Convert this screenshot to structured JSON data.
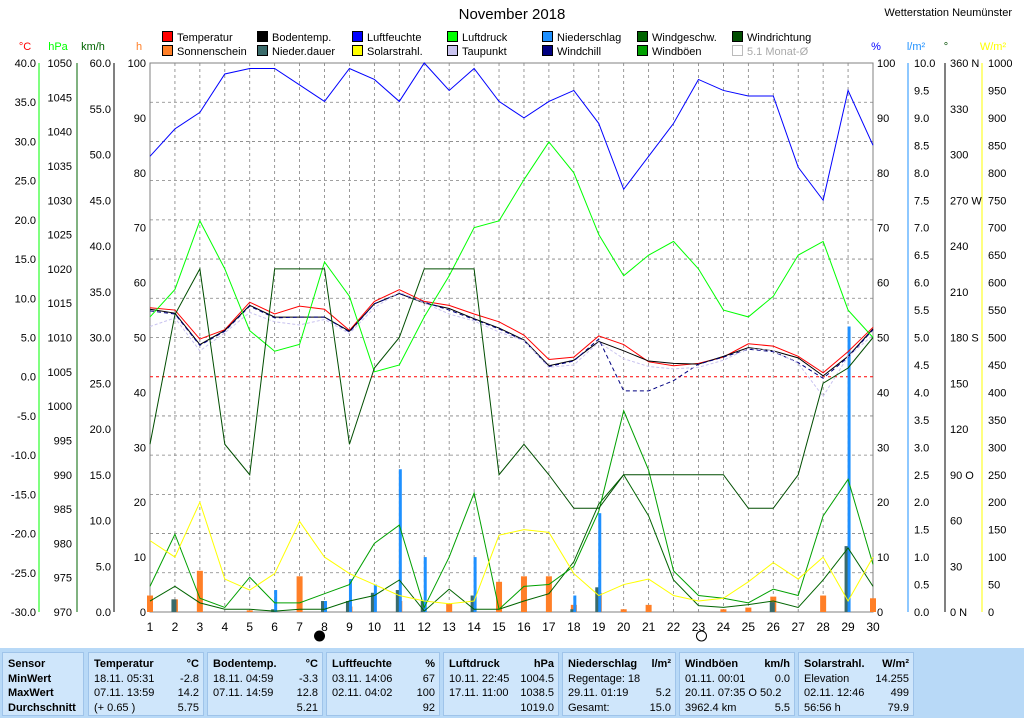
{
  "title": "November 2018",
  "station": "Wetterstation Neumünster",
  "legend": [
    {
      "label": "Temperatur",
      "color": "#ff0000"
    },
    {
      "label": "Sonnenschein",
      "color": "#ff7f27"
    },
    {
      "label": "Bodentemp.",
      "color": "#000000"
    },
    {
      "label": "Nieder.dauer",
      "color": "#3a6b6b"
    },
    {
      "label": "Luftfeuchte",
      "color": "#0000ff"
    },
    {
      "label": "Solarstrahl.",
      "color": "#ffff00"
    },
    {
      "label": "Luftdruck",
      "color": "#00ff00"
    },
    {
      "label": "Taupunkt",
      "color": "#c9c3ef"
    },
    {
      "label": "Niederschlag",
      "color": "#1e90ff"
    },
    {
      "label": "Windchill",
      "color": "#000080"
    },
    {
      "label": "Windgeschw.",
      "color": "#006400"
    },
    {
      "label": "Windböen",
      "color": "#00a000"
    },
    {
      "label": "Windrichtung",
      "color": "#004d00"
    },
    {
      "label": "5.1 Monat-Ø",
      "color": "#ffffff"
    }
  ],
  "axis_units": {
    "temp": "°C",
    "press": "hPa",
    "wind": "km/h",
    "sun": "h",
    "hum": "%",
    "rain": "l/m²",
    "dir": "°",
    "solar": "W/m²"
  },
  "colors": {
    "temp": "#ff0000",
    "press": "#00ff00",
    "wind": "#006400",
    "sun": "#ff7f27",
    "hum": "#0000ff",
    "rain": "#1e90ff",
    "dir": "#004d00",
    "solar": "#ffff00"
  },
  "chart_data": {
    "type": "line",
    "x": [
      1,
      2,
      3,
      4,
      5,
      6,
      7,
      8,
      9,
      10,
      11,
      12,
      13,
      14,
      15,
      16,
      17,
      18,
      19,
      20,
      21,
      22,
      23,
      24,
      25,
      26,
      27,
      28,
      29,
      30
    ],
    "axes": {
      "temp": {
        "min": -30,
        "max": 40,
        "ticks": [
          "40.0",
          "35.0",
          "30.0",
          "25.0",
          "20.0",
          "15.0",
          "10.0",
          "5.0",
          "0.0",
          "-5.0",
          "-10.0",
          "-15.0",
          "-20.0",
          "-25.0",
          "-30.0"
        ]
      },
      "press": {
        "min": 970,
        "max": 1050,
        "ticks": [
          "1050",
          "1045",
          "1040",
          "1035",
          "1030",
          "1025",
          "1020",
          "1015",
          "1010",
          "1005",
          "1000",
          "995",
          "990",
          "985",
          "980",
          "975",
          "970"
        ]
      },
      "wind": {
        "min": 0,
        "max": 60,
        "ticks": [
          "60.0",
          "55.0",
          "50.0",
          "45.0",
          "40.0",
          "35.0",
          "30.0",
          "25.0",
          "20.0",
          "15.0",
          "10.0",
          "5.0",
          "0.0"
        ]
      },
      "sun": {
        "min": 0,
        "max": 100,
        "ticks": [
          "100",
          "90",
          "80",
          "70",
          "60",
          "50",
          "40",
          "30",
          "20",
          "10",
          "0"
        ]
      },
      "hum": {
        "min": 0,
        "max": 100,
        "ticks": [
          "100",
          "90",
          "80",
          "70",
          "60",
          "50",
          "40",
          "30",
          "20",
          "10",
          "0"
        ]
      },
      "rain": {
        "min": 0,
        "max": 10,
        "ticks": [
          "10.0",
          "9.5",
          "9.0",
          "8.5",
          "8.0",
          "7.5",
          "7.0",
          "6.5",
          "6.0",
          "5.5",
          "5.0",
          "4.5",
          "4.0",
          "3.5",
          "3.0",
          "2.5",
          "2.0",
          "1.5",
          "1.0",
          "0.5",
          "0.0"
        ]
      },
      "dir": {
        "min": 0,
        "max": 360,
        "ticks": [
          "360 N",
          "330",
          "300",
          "270 W",
          "240",
          "210",
          "180 S",
          "150",
          "120",
          "90 O",
          "60",
          "30",
          "0 N"
        ]
      },
      "solar": {
        "min": 0,
        "max": 1000,
        "ticks": [
          "1000",
          "950",
          "900",
          "850",
          "800",
          "750",
          "700",
          "650",
          "600",
          "550",
          "500",
          "450",
          "400",
          "350",
          "300",
          "250",
          "200",
          "150",
          "100",
          "50",
          "0"
        ]
      }
    },
    "series": [
      {
        "name": "Temperatur",
        "axis": "temp",
        "color": "#ff0000",
        "values": [
          8.8,
          8.5,
          4.8,
          6.0,
          9.5,
          8.0,
          9.0,
          8.6,
          5.9,
          9.6,
          11.1,
          9.6,
          9.1,
          8.0,
          7.0,
          5.3,
          2.2,
          2.5,
          5.2,
          4.1,
          1.9,
          1.4,
          1.7,
          2.5,
          4.2,
          3.9,
          2.6,
          0.5,
          3.2,
          6.3
        ]
      },
      {
        "name": "Bodentemp.",
        "axis": "temp",
        "color": "#000000",
        "values": [
          8.6,
          8.1,
          4.1,
          5.9,
          9.1,
          7.6,
          7.6,
          7.6,
          5.8,
          9.3,
          10.6,
          9.4,
          8.7,
          7.4,
          6.2,
          4.7,
          1.4,
          2.1,
          4.5,
          3.3,
          2.0,
          1.7,
          1.6,
          2.6,
          3.7,
          3.3,
          2.4,
          0.1,
          2.6,
          6.1
        ]
      },
      {
        "name": "Windchill",
        "axis": "temp",
        "color": "#000080",
        "dash": "4,3",
        "values": [
          8.4,
          8.0,
          4.0,
          5.8,
          9.0,
          7.5,
          7.6,
          7.6,
          5.7,
          9.3,
          10.6,
          9.5,
          8.5,
          7.3,
          6.1,
          4.6,
          1.3,
          2.0,
          4.8,
          -1.8,
          -1.8,
          -0.5,
          1.6,
          2.5,
          3.5,
          3.2,
          1.8,
          -0.2,
          2.5,
          6.0
        ]
      },
      {
        "name": "Taupunkt",
        "axis": "temp",
        "color": "#c9c3ef",
        "dash": "3,2",
        "values": [
          6.4,
          7.5,
          3.3,
          5.6,
          8.2,
          7.0,
          6.6,
          7.3,
          5.5,
          8.8,
          10.8,
          9.4,
          8.0,
          7.1,
          5.7,
          4.6,
          1.2,
          1.5,
          4.4,
          2.3,
          1.3,
          1.0,
          1.2,
          2.1,
          3.6,
          3.3,
          1.7,
          -2.5,
          2.6,
          5.3
        ]
      },
      {
        "name": "Luftdruck",
        "axis": "press",
        "color": "#00ff00",
        "values": [
          1013,
          1017,
          1027,
          1020,
          1011,
          1008,
          1009,
          1021,
          1016,
          1005,
          1006,
          1013,
          1019,
          1026,
          1027,
          1033,
          1038.5,
          1034,
          1025,
          1019,
          1022,
          1024,
          1020,
          1014,
          1013,
          1016,
          1022,
          1024,
          1014,
          1010
        ]
      },
      {
        "name": "Windgeschw.",
        "axis": "wind",
        "color": "#006400",
        "values": [
          1.2,
          2.8,
          1.0,
          0.3,
          0.3,
          0.1,
          0.3,
          0.3,
          1.2,
          1.8,
          3.5,
          0.1,
          2.5,
          0.3,
          0.3,
          1.2,
          2.0,
          5.5,
          11.8,
          15.0,
          10.5,
          3.5,
          0.7,
          0.5,
          0.8,
          1.2,
          0.5,
          3.5,
          7.0,
          2.8
        ]
      },
      {
        "name": "Windböen",
        "axis": "wind",
        "color": "#00a000",
        "values": [
          2.8,
          8.5,
          1.5,
          0.5,
          3.8,
          1.0,
          1.0,
          2.0,
          3.0,
          7.5,
          9.5,
          0.5,
          6.0,
          13.0,
          0.3,
          2.8,
          3.0,
          5.0,
          11.0,
          22.0,
          15.5,
          4.5,
          1.8,
          1.5,
          1.0,
          2.5,
          1.8,
          10.5,
          14.5,
          5.2
        ]
      },
      {
        "name": "Luftfeuchte",
        "axis": "hum",
        "color": "#0000ff",
        "values": [
          83,
          88,
          91,
          98,
          99,
          99,
          96,
          93,
          99,
          97,
          93,
          100,
          95,
          99,
          93,
          90,
          93,
          95,
          89,
          77,
          83,
          89,
          97,
          95,
          94,
          94,
          81,
          75,
          95,
          85
        ]
      },
      {
        "name": "Solarstrahl.",
        "axis": "solar",
        "color": "#ffff00",
        "values": [
          130,
          100,
          200,
          60,
          40,
          70,
          165,
          100,
          70,
          50,
          30,
          20,
          15,
          20,
          140,
          150,
          145,
          70,
          30,
          50,
          60,
          30,
          20,
          25,
          55,
          90,
          60,
          100,
          20,
          100
        ]
      },
      {
        "name": "Windrichtung",
        "axis": "dir",
        "color": "#004d00",
        "values": [
          110,
          195,
          225,
          110,
          90,
          225,
          225,
          225,
          110,
          160,
          180,
          225,
          225,
          225,
          90,
          110,
          90,
          68,
          68,
          90,
          90,
          90,
          90,
          90,
          68,
          68,
          90,
          150,
          160,
          180
        ]
      },
      {
        "name": "Sonnenschein",
        "axis": "sun",
        "color": "#ff7f27",
        "kind": "bar",
        "values": [
          3.0,
          2.3,
          7.5,
          0,
          0.3,
          0,
          6.5,
          0,
          1.0,
          0,
          2.0,
          0,
          1.5,
          0,
          5.5,
          6.5,
          6.5,
          1.3,
          3.5,
          0.5,
          1.3,
          0,
          0,
          0.5,
          0.8,
          2.8,
          0,
          3.0,
          0,
          2.5
        ]
      },
      {
        "name": "Nieder.dauer",
        "axis": "sun",
        "color": "#3a6b6b",
        "kind": "bar",
        "values": [
          0,
          2.3,
          0,
          0,
          0,
          0.5,
          0,
          2.0,
          2.0,
          3.5,
          4.0,
          2.0,
          0,
          3.0,
          0,
          0,
          0,
          0.5,
          4.5,
          0,
          0,
          0,
          0,
          0,
          0,
          1.8,
          0,
          0,
          12.0,
          0
        ]
      },
      {
        "name": "Niederschlag",
        "axis": "rain",
        "color": "#1e90ff",
        "kind": "bar",
        "values": [
          0,
          0,
          0,
          0,
          0,
          0.4,
          0,
          0.2,
          0.6,
          0.5,
          2.6,
          1.0,
          0,
          1.0,
          0,
          0,
          0,
          0.3,
          1.8,
          0,
          0,
          0,
          0,
          0,
          0,
          0,
          0,
          0,
          5.2,
          0
        ]
      }
    ],
    "moon_days": {
      "new_moon": 8,
      "full_moon": 23
    }
  },
  "stats": {
    "row_labels": [
      "Sensor",
      "MinWert",
      "MaxWert",
      "Durchschnitt"
    ],
    "columns": [
      {
        "name": "Temperatur",
        "unit": "°C",
        "rows": [
          [
            "18.11.  05:31",
            "-2.8"
          ],
          [
            "07.11.  13:59",
            "14.2"
          ],
          [
            "(+ 0.65 )",
            "5.75"
          ]
        ]
      },
      {
        "name": "Bodentemp.",
        "unit": "°C",
        "rows": [
          [
            "18.11.  04:59",
            "-3.3"
          ],
          [
            "07.11.  14:59",
            "12.8"
          ],
          [
            "",
            "5.21"
          ]
        ]
      },
      {
        "name": "Luftfeuchte",
        "unit": "%",
        "rows": [
          [
            "03.11.  14:06",
            "67"
          ],
          [
            "02.11.  04:02",
            "100"
          ],
          [
            "",
            "92"
          ]
        ]
      },
      {
        "name": "Luftdruck",
        "unit": "hPa",
        "rows": [
          [
            "10.11.  22:45",
            "1004.5"
          ],
          [
            "17.11.  11:00",
            "1038.5"
          ],
          [
            "",
            "1019.0"
          ]
        ]
      },
      {
        "name": "Niederschlag",
        "unit": "l/m²",
        "rows": [
          [
            "Regentage: 18",
            ""
          ],
          [
            "29.11.  01:19",
            "5.2"
          ],
          [
            "Gesamt:",
            "15.0"
          ]
        ]
      },
      {
        "name": "Windböen",
        "unit": "km/h",
        "rows": [
          [
            "01.11.  00:01",
            "0.0"
          ],
          [
            "20.11.  07:35  O 50.2",
            ""
          ],
          [
            "3962.4 km",
            "5.5"
          ]
        ]
      },
      {
        "name": "Solarstrahl.",
        "unit": "W/m²",
        "rows": [
          [
            "Elevation",
            "14.255"
          ],
          [
            "02.11.  12:46",
            "499"
          ],
          [
            "56:56 h",
            "79.9"
          ]
        ]
      }
    ]
  }
}
